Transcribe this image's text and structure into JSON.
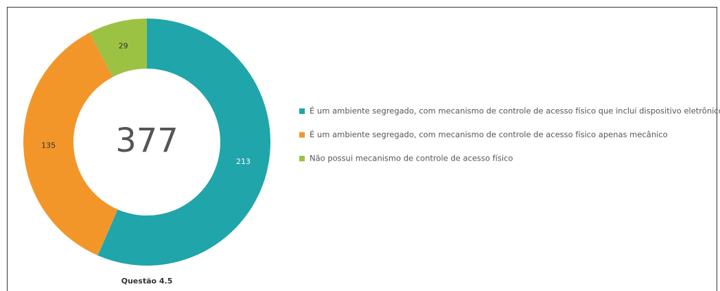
{
  "chart_data": {
    "type": "pie",
    "title": "Questão 4.5",
    "total": 377,
    "categories": [
      "É um ambiente segregado, com mecanismo de controle de acesso físico que inclui dispositivo eletrônico",
      "É um ambiente segregado, com mecanismo de controle de acesso físico apenas mecânico",
      "Não possui mecanismo de controle de acesso físico"
    ],
    "values": [
      213,
      135,
      29
    ],
    "colors": [
      "#1fa5aa",
      "#f2962a",
      "#9cc244"
    ],
    "legend": "right"
  }
}
